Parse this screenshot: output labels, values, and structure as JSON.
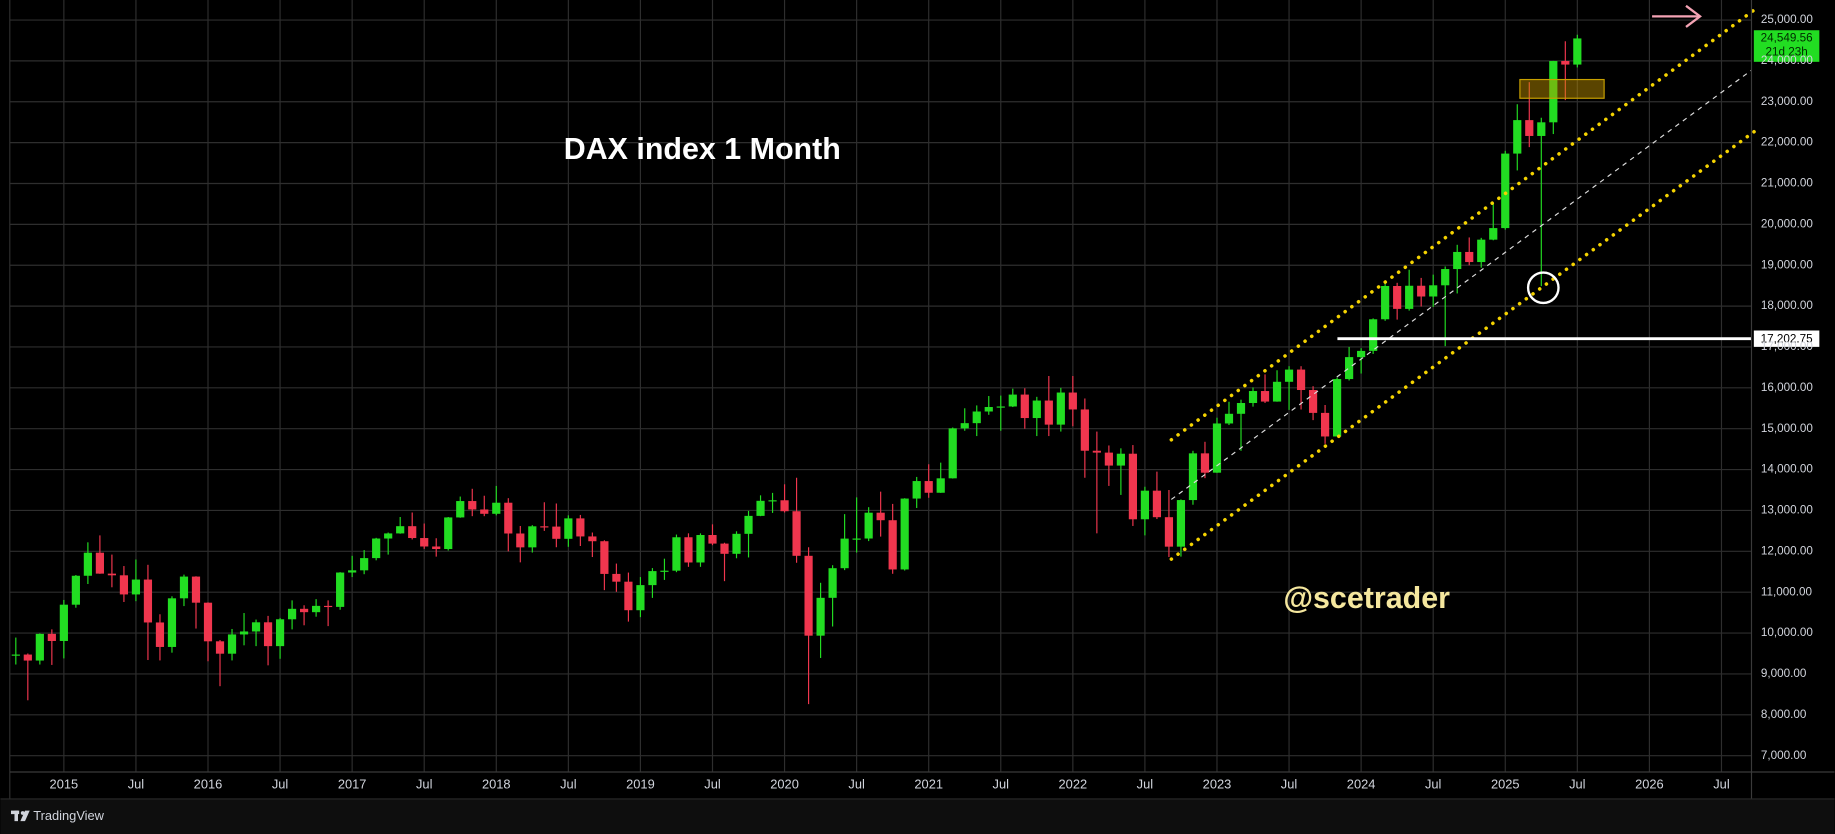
{
  "chart_data": {
    "type": "candlestick",
    "title": "DAX index 1 Month",
    "watermark": "@scetrader",
    "brand": "TradingView",
    "up_color": "#22dd22",
    "down_color": "#f0364e",
    "grid": true,
    "x": [
      "2014-09",
      "2014-10",
      "2014-11",
      "2014-12",
      "2015-01",
      "2015-02",
      "2015-03",
      "2015-04",
      "2015-05",
      "2015-06",
      "2015-07",
      "2015-08",
      "2015-09",
      "2015-10",
      "2015-11",
      "2015-12",
      "2016-01",
      "2016-02",
      "2016-03",
      "2016-04",
      "2016-05",
      "2016-06",
      "2016-07",
      "2016-08",
      "2016-09",
      "2016-10",
      "2016-11",
      "2016-12",
      "2017-01",
      "2017-02",
      "2017-03",
      "2017-04",
      "2017-05",
      "2017-06",
      "2017-07",
      "2017-08",
      "2017-09",
      "2017-10",
      "2017-11",
      "2017-12",
      "2018-01",
      "2018-02",
      "2018-03",
      "2018-04",
      "2018-05",
      "2018-06",
      "2018-07",
      "2018-08",
      "2018-09",
      "2018-10",
      "2018-11",
      "2018-12",
      "2019-01",
      "2019-02",
      "2019-03",
      "2019-04",
      "2019-05",
      "2019-06",
      "2019-07",
      "2019-08",
      "2019-09",
      "2019-10",
      "2019-11",
      "2019-12",
      "2020-01",
      "2020-02",
      "2020-03",
      "2020-04",
      "2020-05",
      "2020-06",
      "2020-07",
      "2020-08",
      "2020-09",
      "2020-10",
      "2020-11",
      "2020-12",
      "2021-01",
      "2021-02",
      "2021-03",
      "2021-04",
      "2021-05",
      "2021-06",
      "2021-07",
      "2021-08",
      "2021-09",
      "2021-10",
      "2021-11",
      "2021-12",
      "2022-01",
      "2022-02",
      "2022-03",
      "2022-04",
      "2022-05",
      "2022-06",
      "2022-07",
      "2022-08",
      "2022-09",
      "2022-10",
      "2022-11",
      "2022-12",
      "2023-01",
      "2023-02",
      "2023-03",
      "2023-04",
      "2023-05",
      "2023-06",
      "2023-07",
      "2023-08",
      "2023-09",
      "2023-10",
      "2023-11",
      "2023-12",
      "2024-01",
      "2024-02",
      "2024-03",
      "2024-04",
      "2024-05",
      "2024-06",
      "2024-07",
      "2024-08",
      "2024-09",
      "2024-10",
      "2024-11",
      "2024-12",
      "2025-01",
      "2025-02",
      "2025-03",
      "2025-04",
      "2025-05",
      "2025-06",
      "2025-07"
    ],
    "open": [
      9470,
      9474,
      9327,
      9980,
      9806,
      10694,
      11402,
      11966,
      11454,
      11413,
      10945,
      11309,
      10259,
      9660,
      10850,
      11382,
      10743,
      9798,
      9495,
      9966,
      10039,
      10263,
      9680,
      10337,
      10593,
      10511,
      10665,
      10640,
      11481,
      11535,
      11834,
      12313,
      12438,
      12615,
      12325,
      12118,
      12056,
      12829,
      13230,
      13024,
      12918,
      13189,
      12436,
      12097,
      12612,
      12605,
      12306,
      12806,
      12364,
      12247,
      11447,
      11257,
      10559,
      11173,
      11516,
      11526,
      12344,
      11727,
      12399,
      12189,
      11939,
      12428,
      12867,
      13236,
      13249,
      12981,
      11890,
      9936,
      10862,
      11587,
      12311,
      12313,
      12945,
      12761,
      11556,
      13291,
      13719,
      13433,
      13786,
      15008,
      15136,
      15421,
      15531,
      15544,
      15835,
      15261,
      15689,
      15100,
      15885,
      15471,
      14461,
      14415,
      14098,
      14388,
      12784,
      13484,
      12835,
      12114,
      13254,
      14397,
      13924,
      15128,
      15365,
      15629,
      15922,
      15664,
      16148,
      16447,
      15947,
      15387,
      14810,
      16215,
      16752,
      16904,
      17678,
      18492,
      17932,
      18498,
      18235,
      18509,
      18907,
      19325,
      19078,
      19626,
      19909,
      21732,
      22551,
      22163,
      22497,
      23997,
      23910
    ],
    "high": [
      9890,
      9500,
      9990,
      10090,
      10810,
      11420,
      12220,
      12390,
      11920,
      11640,
      11800,
      11670,
      10460,
      10900,
      11430,
      11390,
      10750,
      9830,
      10100,
      10490,
      10330,
      10420,
      10370,
      10800,
      10680,
      10830,
      10800,
      11490,
      11890,
      12030,
      12330,
      12460,
      12840,
      12950,
      12680,
      12320,
      12840,
      13340,
      13530,
      13360,
      13600,
      13300,
      12620,
      12640,
      13200,
      13170,
      12880,
      12890,
      12460,
      12270,
      11700,
      11480,
      11370,
      11590,
      11820,
      12410,
      12440,
      12440,
      12660,
      12210,
      12490,
      12990,
      13370,
      13430,
      13640,
      13800,
      12100,
      11230,
      11660,
      12910,
      13320,
      13080,
      13460,
      13160,
      13300,
      13820,
      14130,
      14170,
      15030,
      15500,
      15570,
      15800,
      15810,
      15980,
      15990,
      15780,
      16290,
      16000,
      16290,
      15740,
      14930,
      14590,
      14520,
      14600,
      13580,
      13950,
      13500,
      13270,
      14460,
      14680,
      15270,
      15660,
      15710,
      16010,
      16330,
      16430,
      16530,
      16530,
      16040,
      15580,
      16250,
      17000,
      16970,
      17700,
      18570,
      18570,
      18890,
      18690,
      18770,
      18970,
      19500,
      19680,
      19670,
      20520,
      21800,
      22940,
      23480,
      22610,
      24000,
      24480,
      24640
    ],
    "low": [
      9230,
      8355,
      9230,
      9220,
      9380,
      10620,
      11200,
      11450,
      11120,
      10760,
      10780,
      9340,
      9330,
      9520,
      10660,
      10110,
      9310,
      8700,
      9330,
      9700,
      9680,
      9210,
      9370,
      10090,
      10190,
      10400,
      10170,
      10570,
      11370,
      11440,
      11780,
      11920,
      12430,
      12290,
      12060,
      11870,
      12020,
      12820,
      12860,
      12860,
      12880,
      12000,
      11730,
      11970,
      12500,
      12100,
      12110,
      12130,
      11860,
      11050,
      11010,
      10280,
      10390,
      10860,
      11300,
      11490,
      11620,
      11620,
      12150,
      11270,
      11830,
      11850,
      12860,
      12940,
      12950,
      11720,
      8260,
      9390,
      10160,
      11540,
      11970,
      12250,
      12360,
      11450,
      11530,
      13060,
      13310,
      13430,
      13780,
      14950,
      14820,
      15340,
      14950,
      15530,
      15000,
      14820,
      14820,
      14930,
      15060,
      13800,
      12440,
      13600,
      13380,
      12620,
      12390,
      12790,
      11860,
      11870,
      13140,
      13790,
      13920,
      15090,
      14460,
      15540,
      15630,
      15660,
      15460,
      15470,
      15210,
      14630,
      14810,
      16180,
      16350,
      16830,
      17640,
      17670,
      17890,
      17990,
      17980,
      17020,
      18310,
      19000,
      18940,
      19610,
      19870,
      21320,
      21890,
      18490,
      22210,
      23040,
      23840
    ],
    "close": [
      9474,
      9327,
      9980,
      9806,
      10694,
      11402,
      11966,
      11454,
      11413,
      10945,
      11309,
      10259,
      9660,
      10850,
      11382,
      10743,
      9798,
      9495,
      9966,
      10039,
      10263,
      9680,
      10337,
      10593,
      10511,
      10665,
      10640,
      11481,
      11535,
      11834,
      12313,
      12438,
      12615,
      12325,
      12118,
      12056,
      12829,
      13230,
      13024,
      12918,
      13189,
      12436,
      12097,
      12612,
      12605,
      12306,
      12806,
      12364,
      12247,
      11447,
      11257,
      10559,
      11173,
      11516,
      11526,
      12344,
      11727,
      12399,
      12189,
      11939,
      12428,
      12867,
      13236,
      13249,
      12981,
      11890,
      9936,
      10862,
      11587,
      12311,
      12313,
      12945,
      12761,
      11556,
      13291,
      13719,
      13433,
      13786,
      15008,
      15136,
      15421,
      15531,
      15544,
      15835,
      15261,
      15689,
      15100,
      15885,
      15471,
      14461,
      14415,
      14098,
      14388,
      12784,
      13484,
      12835,
      12114,
      13254,
      14397,
      13924,
      15128,
      15365,
      15629,
      15922,
      15664,
      16148,
      16447,
      15947,
      15387,
      14810,
      16215,
      16752,
      16904,
      17678,
      18492,
      17932,
      18498,
      18235,
      18509,
      18907,
      19325,
      19078,
      19626,
      19909,
      21732,
      22551,
      22163,
      22497,
      23997,
      23910,
      24549.56
    ],
    "xlim": [
      "2014-09",
      "2026-09"
    ],
    "xticks": [
      {
        "value": "2015-01",
        "label": "2015"
      },
      {
        "value": "2015-07",
        "label": "Jul"
      },
      {
        "value": "2016-01",
        "label": "2016"
      },
      {
        "value": "2016-07",
        "label": "Jul"
      },
      {
        "value": "2017-01",
        "label": "2017"
      },
      {
        "value": "2017-07",
        "label": "Jul"
      },
      {
        "value": "2018-01",
        "label": "2018"
      },
      {
        "value": "2018-07",
        "label": "Jul"
      },
      {
        "value": "2019-01",
        "label": "2019"
      },
      {
        "value": "2019-07",
        "label": "Jul"
      },
      {
        "value": "2020-01",
        "label": "2020"
      },
      {
        "value": "2020-07",
        "label": "Jul"
      },
      {
        "value": "2021-01",
        "label": "2021"
      },
      {
        "value": "2021-07",
        "label": "Jul"
      },
      {
        "value": "2022-01",
        "label": "2022"
      },
      {
        "value": "2022-07",
        "label": "Jul"
      },
      {
        "value": "2023-01",
        "label": "2023"
      },
      {
        "value": "2023-07",
        "label": "Jul"
      },
      {
        "value": "2024-01",
        "label": "2024"
      },
      {
        "value": "2024-07",
        "label": "Jul"
      },
      {
        "value": "2025-01",
        "label": "2025"
      },
      {
        "value": "2025-07",
        "label": "Jul"
      },
      {
        "value": "2026-01",
        "label": "2026"
      },
      {
        "value": "2026-07",
        "label": "Jul"
      }
    ],
    "ylim": [
      6600,
      25490
    ],
    "yticks": [
      {
        "value": 7000,
        "label": "7,000.00"
      },
      {
        "value": 8000,
        "label": "8,000.00"
      },
      {
        "value": 9000,
        "label": "9,000.00"
      },
      {
        "value": 10000,
        "label": "10,000.00"
      },
      {
        "value": 11000,
        "label": "11,000.00"
      },
      {
        "value": 12000,
        "label": "12,000.00"
      },
      {
        "value": 13000,
        "label": "13,000.00"
      },
      {
        "value": 14000,
        "label": "14,000.00"
      },
      {
        "value": 15000,
        "label": "15,000.00"
      },
      {
        "value": 16000,
        "label": "16,000.00"
      },
      {
        "value": 17000,
        "label": "17,000.00"
      },
      {
        "value": 18000,
        "label": "18,000.00"
      },
      {
        "value": 19000,
        "label": "19,000.00"
      },
      {
        "value": 20000,
        "label": "20,000.00"
      },
      {
        "value": 21000,
        "label": "21,000.00"
      },
      {
        "value": 22000,
        "label": "22,000.00"
      },
      {
        "value": 23000,
        "label": "23,000.00"
      },
      {
        "value": 24000,
        "label": "24,000.00"
      },
      {
        "value": 25000,
        "label": "25,000.00"
      }
    ],
    "hline": {
      "value": 17202.75,
      "label": "17,202.75"
    },
    "last_price": {
      "value": 24549.56,
      "label": "24,549.56"
    },
    "countdown": "21d 23h"
  }
}
